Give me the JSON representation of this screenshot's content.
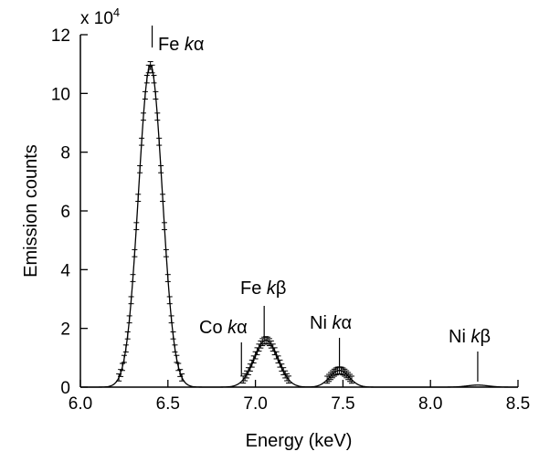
{
  "chart_data": {
    "type": "line",
    "xlabel": "Energy (keV)",
    "ylabel": "Emission counts",
    "y_multiplier": "x 10",
    "y_multiplier_exp": "4",
    "xlim": [
      6.0,
      8.5
    ],
    "ylim": [
      0,
      12
    ],
    "x_ticks": [
      "6.0",
      "6.5",
      "7.0",
      "7.5",
      "8.0",
      "8.5"
    ],
    "y_ticks": [
      "0",
      "2",
      "4",
      "6",
      "8",
      "10",
      "12"
    ],
    "grid": false,
    "baseline": 0.0,
    "peaks": [
      {
        "center": 6.4,
        "height": 10.95,
        "sigma": 0.068
      },
      {
        "center": 7.06,
        "height": 1.6,
        "sigma": 0.068
      },
      {
        "center": 7.48,
        "height": 0.57,
        "sigma": 0.055
      },
      {
        "center": 8.27,
        "height": 0.07,
        "sigma": 0.06
      }
    ],
    "annotations": [
      {
        "id": "fe-ka",
        "element": "Fe",
        "line": "α",
        "x": 6.4
      },
      {
        "id": "co-ka",
        "element": "Co",
        "line": "α",
        "x": 6.93
      },
      {
        "id": "fe-kb",
        "element": "Fe",
        "line": "β",
        "x": 7.06
      },
      {
        "id": "ni-ka",
        "element": "Ni",
        "line": "α",
        "x": 7.48
      },
      {
        "id": "ni-kb",
        "element": "Ni",
        "line": "β",
        "x": 8.27
      }
    ]
  }
}
